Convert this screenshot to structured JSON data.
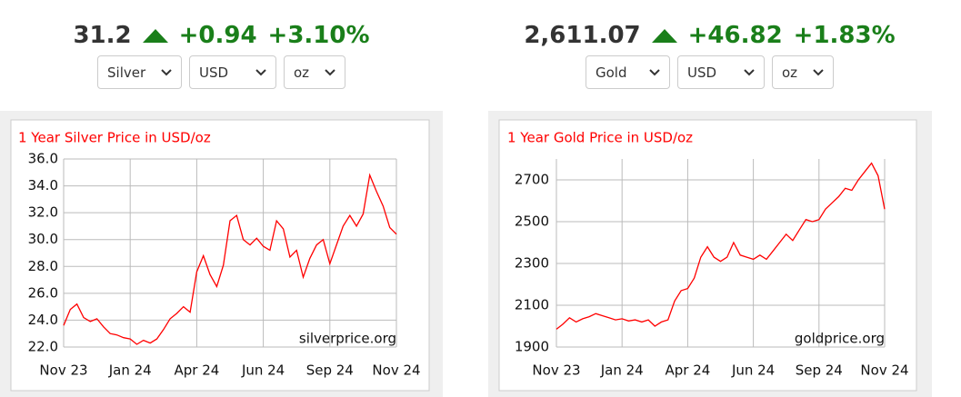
{
  "tickers": [
    {
      "price": "31.2",
      "change": "+0.94",
      "change_percent": "+3.10%",
      "metal": "Silver",
      "currency": "USD",
      "unit": "oz"
    },
    {
      "price": "2,611.07",
      "change": "+46.82",
      "change_percent": "+1.83%",
      "metal": "Gold",
      "currency": "USD",
      "unit": "oz"
    }
  ],
  "chart_data": [
    {
      "type": "line",
      "title": "1 Year Silver Price in USD/oz",
      "watermark": "silverprice.org",
      "categories": [
        "Nov 23",
        null,
        null,
        null,
        null,
        null,
        null,
        null,
        null,
        null,
        "Jan 24",
        null,
        null,
        null,
        null,
        null,
        null,
        null,
        null,
        null,
        "Apr 24",
        null,
        null,
        null,
        null,
        null,
        null,
        null,
        null,
        null,
        "Jun 24",
        null,
        null,
        null,
        null,
        null,
        null,
        null,
        null,
        null,
        "Sep 24",
        null,
        null,
        null,
        null,
        null,
        null,
        null,
        null,
        null,
        "Nov 24"
      ],
      "series": [
        {
          "color": "#ff0000",
          "values": [
            23.6,
            24.8,
            25.2,
            24.2,
            23.9,
            24.1,
            23.5,
            23.0,
            22.9,
            22.7,
            22.6,
            22.2,
            22.5,
            22.3,
            22.6,
            23.3,
            24.1,
            24.5,
            25.0,
            24.6,
            27.6,
            28.8,
            27.4,
            26.5,
            28.1,
            31.4,
            31.8,
            30.0,
            29.6,
            30.1,
            29.5,
            29.2,
            31.4,
            30.8,
            28.7,
            29.2,
            27.2,
            28.6,
            29.6,
            30.0,
            28.2,
            29.6,
            31.0,
            31.8,
            31.0,
            31.9,
            34.8,
            33.6,
            32.5,
            30.9,
            30.4
          ]
        }
      ],
      "ylim": [
        22,
        36
      ],
      "yticks": [
        {
          "value": 22,
          "label": "22.0"
        },
        {
          "value": 24,
          "label": "24.0"
        },
        {
          "value": 26,
          "label": "26.0"
        },
        {
          "value": 28,
          "label": "28.0"
        },
        {
          "value": 30,
          "label": "30.0"
        },
        {
          "value": 32,
          "label": "32.0"
        },
        {
          "value": 34,
          "label": "34.0"
        },
        {
          "value": 36,
          "label": "36.0"
        }
      ],
      "grid": true
    },
    {
      "type": "line",
      "title": "1 Year Gold Price in USD/oz",
      "watermark": "goldprice.org",
      "categories": [
        "Nov 23",
        null,
        null,
        null,
        null,
        null,
        null,
        null,
        null,
        null,
        "Jan 24",
        null,
        null,
        null,
        null,
        null,
        null,
        null,
        null,
        null,
        "Apr 24",
        null,
        null,
        null,
        null,
        null,
        null,
        null,
        null,
        null,
        "Jun 24",
        null,
        null,
        null,
        null,
        null,
        null,
        null,
        null,
        null,
        "Sep 24",
        null,
        null,
        null,
        null,
        null,
        null,
        null,
        null,
        null,
        "Nov 24"
      ],
      "series": [
        {
          "color": "#ff0000",
          "values": [
            1985,
            2010,
            2040,
            2020,
            2035,
            2045,
            2060,
            2050,
            2040,
            2030,
            2035,
            2025,
            2030,
            2020,
            2030,
            2000,
            2020,
            2030,
            2120,
            2170,
            2180,
            2230,
            2330,
            2380,
            2330,
            2310,
            2330,
            2400,
            2340,
            2330,
            2320,
            2340,
            2320,
            2360,
            2400,
            2440,
            2410,
            2460,
            2510,
            2500,
            2510,
            2560,
            2590,
            2620,
            2660,
            2650,
            2700,
            2740,
            2780,
            2720,
            2560
          ]
        }
      ],
      "ylim": [
        1900,
        2800
      ],
      "yticks": [
        1900,
        2100,
        2300,
        2500,
        2700
      ],
      "grid": true
    }
  ]
}
